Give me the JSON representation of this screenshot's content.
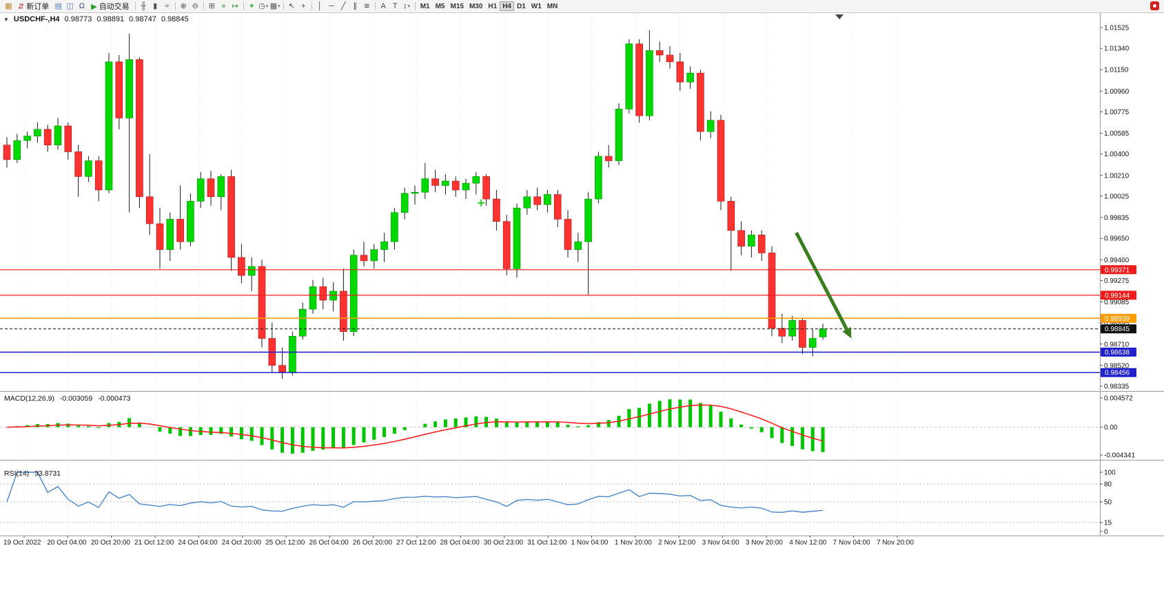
{
  "toolbar": {
    "items": [
      {
        "name": "new-chart-icon",
        "glyph": "▦",
        "color": "#b98b2f"
      },
      {
        "name": "new-order-button",
        "glyph": "⇵",
        "glyph_color": "#c23a3a",
        "label": "新订单"
      },
      {
        "name": "market-watch-icon",
        "glyph": "▤",
        "color": "#4f7ab5"
      },
      {
        "name": "data-window-icon",
        "glyph": "◫",
        "color": "#4f7ab5"
      },
      {
        "name": "sounds-icon",
        "glyph": "Ω",
        "color": "#35508c"
      },
      {
        "name": "autotrading-button",
        "glyph": "▶",
        "glyph_color": "#22a022",
        "label": "自动交易"
      },
      {
        "sep": true
      },
      {
        "name": "bar-chart-icon",
        "glyph": "╫",
        "color": "#555555"
      },
      {
        "name": "candlestick-chart-icon",
        "glyph": "▮",
        "color": "#555555"
      },
      {
        "name": "line-chart-icon",
        "glyph": "≈",
        "color": "#555555"
      },
      {
        "sep": true
      },
      {
        "name": "zoom-in-icon",
        "glyph": "⊕",
        "color": "#555555"
      },
      {
        "name": "zoom-out-icon",
        "glyph": "⊖",
        "color": "#555555"
      },
      {
        "sep": true
      },
      {
        "name": "tile-windows-icon",
        "glyph": "⊞",
        "color": "#555555"
      },
      {
        "name": "auto-scroll-icon",
        "glyph": "»",
        "color": "#2a8a2a"
      },
      {
        "name": "chart-shift-icon",
        "glyph": "↦",
        "color": "#2a8a2a"
      },
      {
        "sep": true
      },
      {
        "name": "indicators-icon",
        "glyph": "+",
        "color": "#1fa51f",
        "bold": true
      },
      {
        "name": "periods-icon",
        "glyph": "◷",
        "color": "#555555",
        "caret": true
      },
      {
        "name": "templates-icon",
        "glyph": "▦",
        "color": "#555555",
        "caret": true
      },
      {
        "sep": true
      },
      {
        "name": "cursor-icon",
        "glyph": "↖",
        "color": "#444444"
      },
      {
        "name": "crosshair-icon",
        "glyph": "+",
        "color": "#444444"
      },
      {
        "sep": true
      },
      {
        "name": "vertical-line-icon",
        "glyph": "│",
        "color": "#444444"
      },
      {
        "name": "horizontal-line-icon",
        "glyph": "─",
        "color": "#444444"
      },
      {
        "name": "trendline-icon",
        "glyph": "╱",
        "color": "#444444"
      },
      {
        "name": "channel-icon",
        "glyph": "∥",
        "color": "#444444"
      },
      {
        "name": "fibonacci-icon",
        "glyph": "≋",
        "color": "#444444"
      },
      {
        "sep": true
      },
      {
        "name": "text-icon",
        "glyph": "A",
        "color": "#444444"
      },
      {
        "name": "text-label-icon",
        "glyph": "T",
        "color": "#444444"
      },
      {
        "name": "arrows-icon",
        "glyph": "↕",
        "color": "#444444",
        "caret": true
      },
      {
        "sep": true
      }
    ],
    "timeframes": [
      {
        "label": "M1"
      },
      {
        "label": "M5"
      },
      {
        "label": "M15"
      },
      {
        "label": "M30"
      },
      {
        "label": "H1"
      },
      {
        "label": "H4",
        "active": true
      },
      {
        "label": "D1"
      },
      {
        "label": "W1"
      },
      {
        "label": "MN"
      }
    ]
  },
  "window": {
    "collapse_glyph": "▼"
  },
  "chart_data": {
    "type": "candlestick",
    "title": "USDCHF-,H4",
    "ohlc": {
      "open": "0.98773",
      "high": "0.98891",
      "low": "0.98747",
      "close": "0.98845"
    },
    "colors": {
      "bull": "#00d800",
      "bull_border": "#008f00",
      "bear": "#ff3232",
      "bear_border": "#a31515",
      "wick": "#1a1a1a",
      "grid": "#ececec",
      "macd_hist": "#00c400",
      "macd_signal": "#ff1e1e",
      "rsi": "#4a86c8"
    },
    "candles": [
      [
        1.0048,
        1.0055,
        1.0028,
        1.0035
      ],
      [
        1.0035,
        1.0058,
        1.0032,
        1.0052
      ],
      [
        1.0052,
        1.006,
        1.0045,
        1.0056
      ],
      [
        1.0056,
        1.0068,
        1.005,
        1.0062
      ],
      [
        1.0062,
        1.0066,
        1.0042,
        1.0048
      ],
      [
        1.0048,
        1.0072,
        1.0044,
        1.0065
      ],
      [
        1.0065,
        1.0068,
        1.0035,
        1.0042
      ],
      [
        1.0042,
        1.0048,
        1.0002,
        1.002
      ],
      [
        1.002,
        1.0038,
        1.0015,
        1.0034
      ],
      [
        1.0034,
        1.0038,
        0.9998,
        1.0008
      ],
      [
        1.0008,
        1.013,
        1.0005,
        1.0122
      ],
      [
        1.0122,
        1.0128,
        1.0062,
        1.0072
      ],
      [
        1.0072,
        1.0147,
        0.9988,
        1.0124
      ],
      [
        1.0124,
        1.0126,
        0.9992,
        1.0002
      ],
      [
        1.0002,
        1.004,
        0.9968,
        0.9978
      ],
      [
        0.9978,
        0.9992,
        0.9938,
        0.9955
      ],
      [
        0.9955,
        0.9988,
        0.9945,
        0.9982
      ],
      [
        0.9982,
        1.0012,
        0.9955,
        0.9962
      ],
      [
        0.9962,
        1.0005,
        0.9958,
        0.9998
      ],
      [
        0.9998,
        1.0024,
        0.9992,
        1.0018
      ],
      [
        1.0018,
        1.0025,
        0.9994,
        1.0002
      ],
      [
        1.0002,
        1.0022,
        0.999,
        1.002
      ],
      [
        1.002,
        1.0026,
        0.9936,
        0.9948
      ],
      [
        0.9948,
        0.996,
        0.9925,
        0.9932
      ],
      [
        0.9932,
        0.9948,
        0.9918,
        0.994
      ],
      [
        0.994,
        0.9946,
        0.9868,
        0.9876
      ],
      [
        0.9876,
        0.989,
        0.9845,
        0.9852
      ],
      [
        0.9852,
        0.9868,
        0.984,
        0.9846
      ],
      [
        0.9846,
        0.9882,
        0.9843,
        0.9878
      ],
      [
        0.9878,
        0.9908,
        0.9875,
        0.9902
      ],
      [
        0.9902,
        0.9928,
        0.9898,
        0.9922
      ],
      [
        0.9922,
        0.993,
        0.9902,
        0.991
      ],
      [
        0.991,
        0.9926,
        0.99,
        0.9918
      ],
      [
        0.9918,
        0.9938,
        0.9874,
        0.9882
      ],
      [
        0.9882,
        0.9955,
        0.9878,
        0.995
      ],
      [
        0.995,
        0.9962,
        0.994,
        0.9945
      ],
      [
        0.9945,
        0.996,
        0.9938,
        0.9955
      ],
      [
        0.9955,
        0.997,
        0.9944,
        0.9962
      ],
      [
        0.9962,
        0.9992,
        0.9955,
        0.9988
      ],
      [
        0.9988,
        1.001,
        0.9982,
        1.0005
      ],
      [
        1.0005,
        1.0012,
        0.9995,
        1.0006
      ],
      [
        1.0006,
        1.0032,
        1.0,
        1.0018
      ],
      [
        1.0018,
        1.0026,
        1.0006,
        1.0012
      ],
      [
        1.0012,
        1.0022,
        1.0004,
        1.0016
      ],
      [
        1.0016,
        1.002,
        1.0002,
        1.0008
      ],
      [
        1.0008,
        1.0018,
        1.0,
        1.0014
      ],
      [
        1.0014,
        1.0024,
        1.0004,
        1.002
      ],
      [
        1.002,
        1.0022,
        0.9994,
        1.0
      ],
      [
        1.0,
        1.0008,
        0.9972,
        0.998
      ],
      [
        0.998,
        0.9986,
        0.9932,
        0.9938
      ],
      [
        0.9938,
        0.9996,
        0.993,
        0.9992
      ],
      [
        0.9992,
        1.0008,
        0.9986,
        1.0002
      ],
      [
        1.0002,
        1.001,
        0.999,
        0.9995
      ],
      [
        0.9995,
        1.0008,
        0.9988,
        1.0004
      ],
      [
        1.0004,
        1.0008,
        0.9975,
        0.9982
      ],
      [
        0.9982,
        0.999,
        0.9948,
        0.9955
      ],
      [
        0.9955,
        0.997,
        0.9944,
        0.9962
      ],
      [
        0.9962,
        1.0006,
        0.9915,
        1.0
      ],
      [
        1.0,
        1.0042,
        0.9996,
        1.0038
      ],
      [
        1.0038,
        1.0048,
        1.0028,
        1.0034
      ],
      [
        1.0034,
        1.0085,
        1.003,
        1.008
      ],
      [
        1.008,
        1.0142,
        1.0076,
        1.0138
      ],
      [
        1.0138,
        1.0142,
        1.0068,
        1.0074
      ],
      [
        1.0074,
        1.015,
        1.007,
        1.0132
      ],
      [
        1.0132,
        1.014,
        1.0122,
        1.0128
      ],
      [
        1.0128,
        1.0136,
        1.0116,
        1.0122
      ],
      [
        1.0122,
        1.013,
        1.0096,
        1.0104
      ],
      [
        1.0104,
        1.0118,
        1.0098,
        1.0112
      ],
      [
        1.0112,
        1.0115,
        1.0052,
        1.006
      ],
      [
        1.006,
        1.0078,
        1.0054,
        1.007
      ],
      [
        1.007,
        1.0075,
        0.999,
        0.9998
      ],
      [
        0.9998,
        1.0002,
        0.9936,
        0.9972
      ],
      [
        0.9972,
        0.998,
        0.995,
        0.9958
      ],
      [
        0.9958,
        0.9972,
        0.9948,
        0.9968
      ],
      [
        0.9968,
        0.9972,
        0.9945,
        0.9952
      ],
      [
        0.9952,
        0.9958,
        0.9878,
        0.9885
      ],
      [
        0.9885,
        0.9898,
        0.9872,
        0.9878
      ],
      [
        0.9878,
        0.9896,
        0.9874,
        0.9892
      ],
      [
        0.9892,
        0.9894,
        0.9862,
        0.9868
      ],
      [
        0.9868,
        0.9884,
        0.986,
        0.9876
      ],
      [
        0.98773,
        0.98891,
        0.98747,
        0.98845
      ]
    ],
    "price_axis": {
      "ticks": [
        "1.01525",
        "1.01340",
        "1.01150",
        "1.00960",
        "1.00775",
        "1.00585",
        "1.00400",
        "1.00210",
        "1.00025",
        "0.99835",
        "0.99650",
        "0.99460",
        "0.99275",
        "0.99085",
        "0.98895",
        "0.98710",
        "0.98520",
        "0.98335"
      ]
    },
    "time_axis": {
      "labels": [
        "19 Oct 2022",
        "20 Oct 04:00",
        "20 Oct 20:00",
        "21 Oct 12:00",
        "24 Oct 04:00",
        "24 Oct 20:00",
        "25 Oct 12:00",
        "26 Oct 04:00",
        "26 Oct 20:00",
        "27 Oct 12:00",
        "28 Oct 04:00",
        "30 Oct 23:00",
        "31 Oct 12:00",
        "1 Nov 04:00",
        "1 Nov 20:00",
        "2 Nov 12:00",
        "3 Nov 04:00",
        "3 Nov 20:00",
        "4 Nov 12:00",
        "7 Nov 04:00",
        "7 Nov 20:00"
      ]
    },
    "lines": [
      {
        "name": "resistance-line-1",
        "price": 0.99371,
        "label": "0.99371",
        "color": "#ee1c1c",
        "style": "solid",
        "width": 1.2
      },
      {
        "name": "resistance-line-2",
        "price": 0.99144,
        "label": "0.99144",
        "color": "#ee1c1c",
        "style": "solid",
        "width": 1.2
      },
      {
        "name": "pivot-line-orange",
        "price": 0.98939,
        "label": "0.98939",
        "color": "#ff9c00",
        "style": "solid",
        "width": 1.6
      },
      {
        "name": "current-price-line",
        "price": 0.98845,
        "label": "0.98845",
        "color": "#111111",
        "style": "dashed",
        "width": 1
      },
      {
        "name": "support-line-1",
        "price": 0.98638,
        "label": "0.98638",
        "color": "#2020cc",
        "style": "solid",
        "width": 1.6
      },
      {
        "name": "support-line-2",
        "price": 0.98456,
        "label": "0.98456",
        "color": "#2020cc",
        "style": "solid",
        "width": 1.6
      }
    ],
    "objects": [
      {
        "type": "arrow",
        "name": "down-trend-arrow",
        "from": {
          "index": 77.4,
          "price": 0.997
        },
        "to": {
          "index": 82.8,
          "price": 0.9876
        },
        "color": "#3a7d1e",
        "width": 5
      },
      {
        "type": "cross",
        "name": "cross-marker",
        "index": 46.5,
        "price": 0.99965,
        "color": "#27c427"
      }
    ],
    "indicators": [
      {
        "name": "MACD",
        "label": "MACD(12,26,9)",
        "value_main": "-0.003059",
        "value_signal": "-0.000473",
        "fast": 12,
        "slow": 26,
        "signal": 9,
        "axis_labels": [
          "0.004572",
          "0.00",
          "-0.004341"
        ],
        "axis_top": 0.004572,
        "axis_bottom": -0.004341
      },
      {
        "name": "RSI",
        "label": "RSI(14)",
        "value": "33.8731",
        "period": 14,
        "axis_ticks": [
          100,
          80,
          50,
          15,
          0
        ],
        "levels": [
          80,
          50,
          15
        ]
      }
    ]
  }
}
